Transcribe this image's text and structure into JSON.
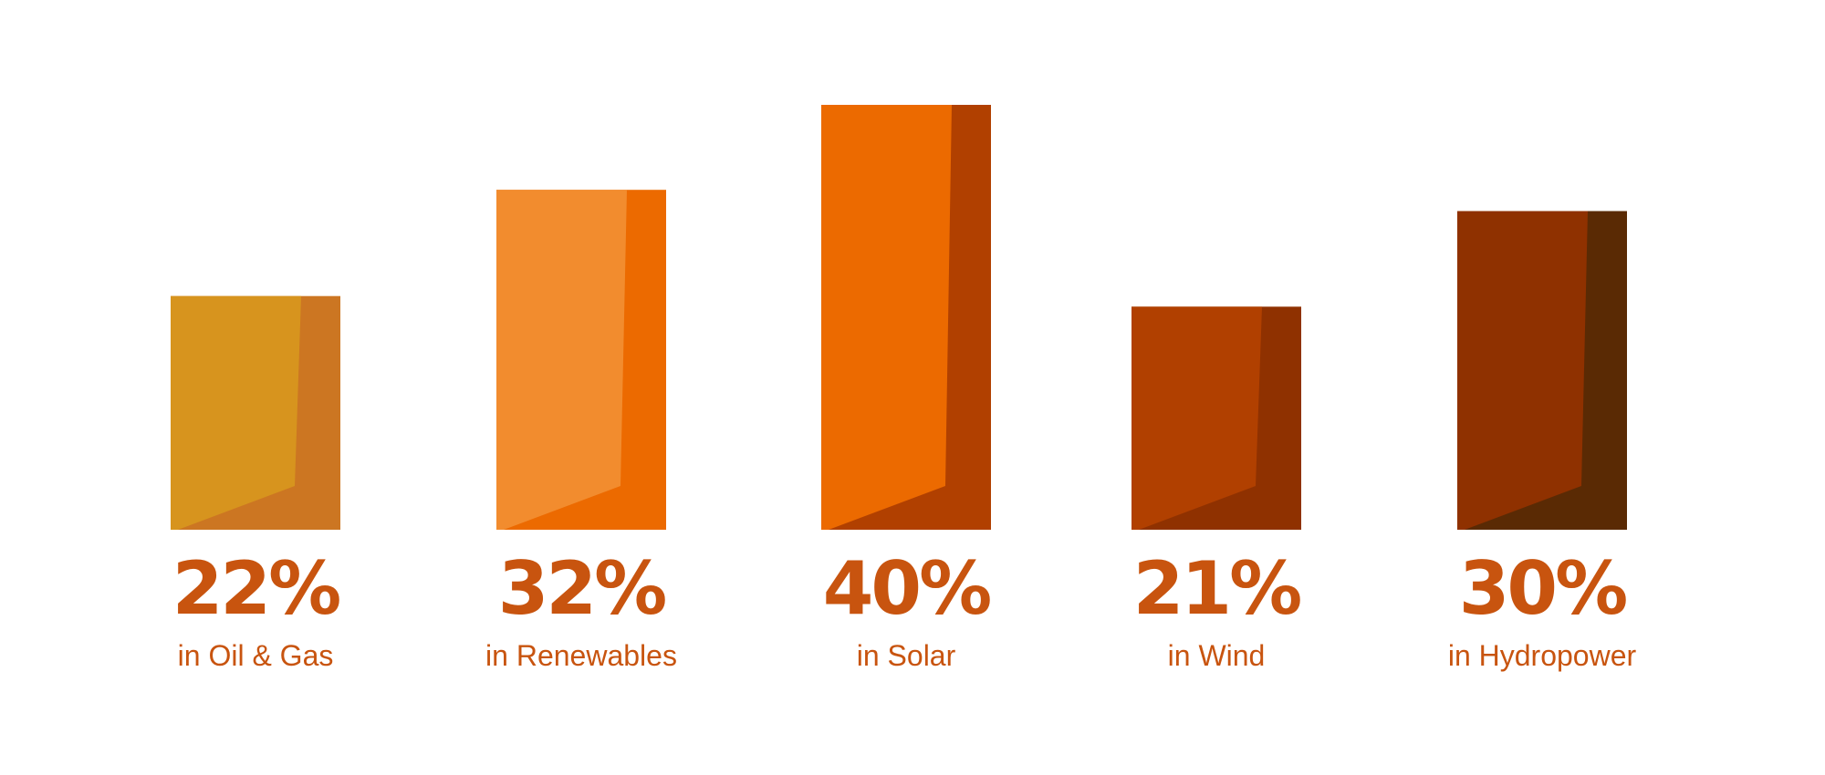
{
  "chart_data": {
    "type": "bar",
    "categories": [
      "in Oil & Gas",
      "in Renewables",
      "in Solar",
      "in Wind",
      "in Hydropower"
    ],
    "values": [
      22,
      32,
      40,
      21,
      30
    ],
    "value_labels": [
      "22%",
      "32%",
      "40%",
      "21%",
      "30%"
    ],
    "unit": "%",
    "title": "",
    "xlabel": "",
    "ylabel": "",
    "ylim": [
      0,
      40
    ],
    "grid": false,
    "legend": "none"
  },
  "colors": {
    "text": "#C8540F",
    "bars": [
      {
        "front": "#D7941E",
        "side": "#CC7622"
      },
      {
        "front": "#F28C2E",
        "side": "#EC6A00"
      },
      {
        "front": "#EC6A00",
        "side": "#B14000"
      },
      {
        "front": "#B14000",
        "side": "#8F3100"
      },
      {
        "front": "#8F3100",
        "side": "#5A2A04"
      }
    ]
  }
}
